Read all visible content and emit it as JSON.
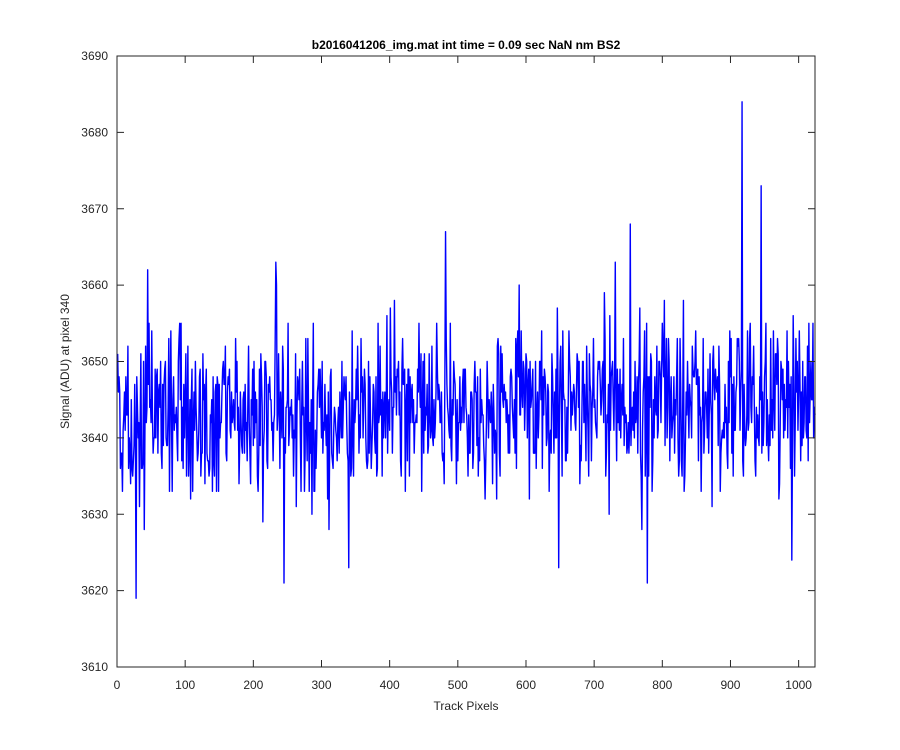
{
  "chart_data": {
    "type": "line",
    "title": "b2016041206_img.mat int time = 0.09 sec  NaN nm BS2",
    "xlabel": "Track Pixels",
    "ylabel": "Signal (ADU) at pixel 340",
    "xlim": [
      0,
      1024
    ],
    "ylim": [
      3610,
      3690
    ],
    "xticks": [
      0,
      100,
      200,
      300,
      400,
      500,
      600,
      700,
      800,
      900,
      1000
    ],
    "yticks": [
      3610,
      3620,
      3630,
      3640,
      3650,
      3660,
      3670,
      3680,
      3690
    ],
    "grid": false,
    "legend": "none",
    "line_color": "#0000ff",
    "series": [
      {
        "x_start": 1,
        "x_step": 1,
        "noise_seed": 20160412,
        "baseline_start": 3642.5,
        "baseline_end": 3645.0,
        "noise_std": 5.5,
        "values": [],
        "peaks": [
          {
            "x": 28,
            "y": 3619
          },
          {
            "x": 45,
            "y": 3662
          },
          {
            "x": 233,
            "y": 3663
          },
          {
            "x": 245,
            "y": 3621
          },
          {
            "x": 340,
            "y": 3623
          },
          {
            "x": 482,
            "y": 3667
          },
          {
            "x": 648,
            "y": 3623
          },
          {
            "x": 753,
            "y": 3668
          },
          {
            "x": 778,
            "y": 3621
          },
          {
            "x": 917,
            "y": 3684
          },
          {
            "x": 945,
            "y": 3673
          },
          {
            "x": 990,
            "y": 3624
          }
        ]
      }
    ]
  }
}
